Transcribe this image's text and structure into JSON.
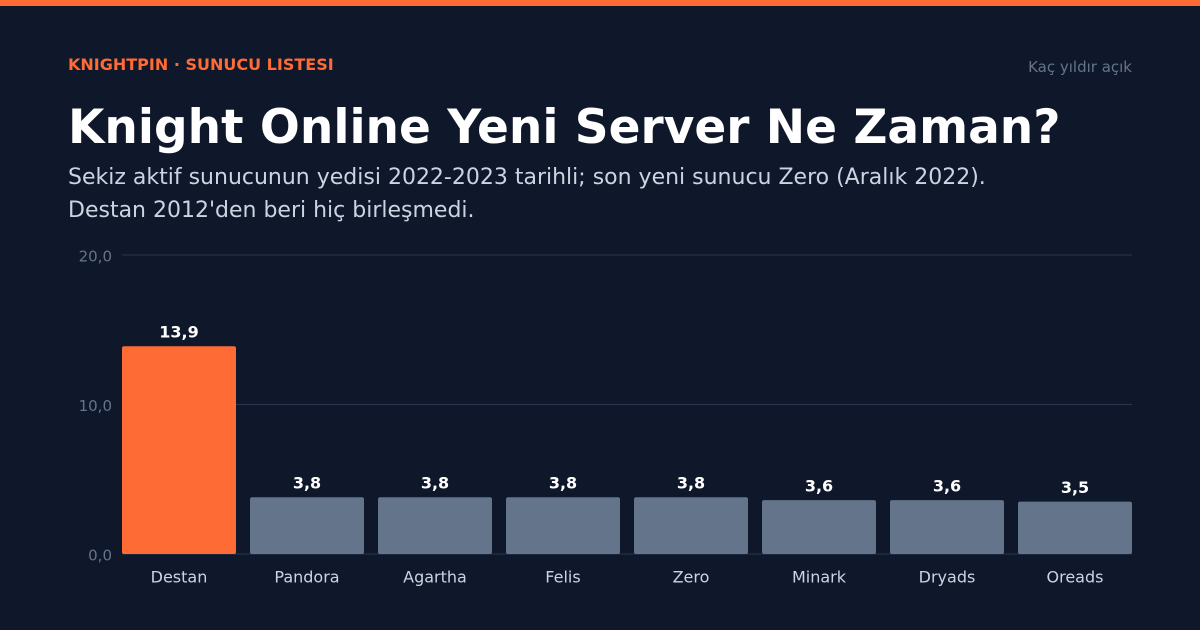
{
  "chart_data": {
    "type": "bar",
    "eyebrow": "KNIGHTPIN · SUNUCU LISTESI",
    "title": "Knight Online Yeni Server Ne Zaman?",
    "subtitle": "Sekiz aktif sunucunun yedisi 2022-2023 tarihli; son yeni sunucu Zero (Aralık 2022). Destan 2012'den beri hiç birleşmedi.",
    "ylabel": "Kaç yıldır açık",
    "categories": [
      "Destan",
      "Pandora",
      "Agartha",
      "Felis",
      "Zero",
      "Minark",
      "Dryads",
      "Oreads"
    ],
    "values": [
      13.9,
      3.8,
      3.8,
      3.8,
      3.8,
      3.6,
      3.6,
      3.5
    ],
    "value_labels": [
      "13,9",
      "3,8",
      "3,8",
      "3,8",
      "3,8",
      "3,6",
      "3,6",
      "3,5"
    ],
    "colors": [
      "#ff6b35",
      "#64748b",
      "#64748b",
      "#64748b",
      "#64748b",
      "#64748b",
      "#64748b",
      "#64748b"
    ],
    "ylim": [
      0,
      20
    ],
    "yticks": [
      {
        "value": 0,
        "label": "0,0"
      },
      {
        "value": 10,
        "label": "10,0"
      },
      {
        "value": 20,
        "label": "20,0"
      }
    ],
    "grid": true
  }
}
